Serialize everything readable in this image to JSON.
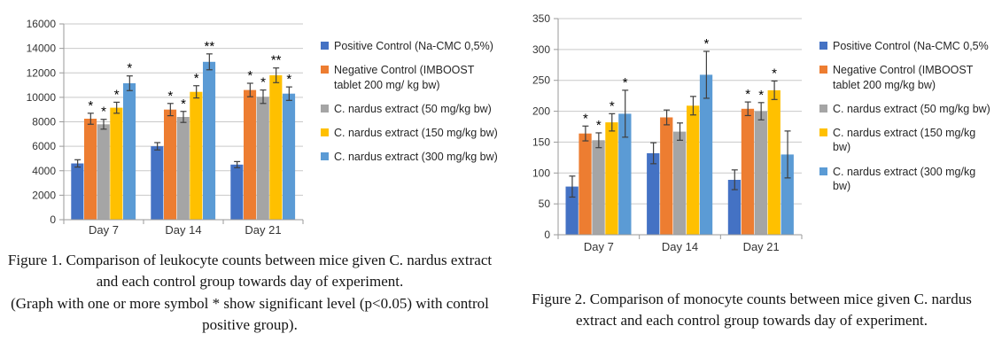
{
  "figure1": {
    "caption": "Figure 1. Comparison of leukocyte counts between mice given C. nardus extract and each control group towards day of experiment.",
    "note": "(Graph with one or more symbol * show significant level (p<0.05) with control positive group)."
  },
  "figure2": {
    "caption": "Figure 2. Comparison of monocyte counts between mice given C. nardus extract and each control group towards day of experiment."
  },
  "chart_data": [
    {
      "type": "bar",
      "figure_label": "Figure 1",
      "measure": "leukocyte counts",
      "categories": [
        "Day 7",
        "Day 14",
        "Day 21"
      ],
      "ylim": [
        0,
        16000
      ],
      "ytick_step": 2000,
      "grid": true,
      "legend_position": "right",
      "series": [
        {
          "name": "Positive Control (Na-CMC 0,5%)",
          "color": "#4472C4",
          "values": [
            4600,
            6000,
            4500
          ],
          "errors": [
            300,
            300,
            250
          ],
          "sig": [
            "",
            "",
            ""
          ]
        },
        {
          "name": "Negative Control (IMBOOST tablet 200 mg/ kg bw)",
          "color": "#ED7D31",
          "values": [
            8250,
            9000,
            10600
          ],
          "errors": [
            450,
            500,
            550
          ],
          "sig": [
            "*",
            "*",
            "*"
          ]
        },
        {
          "name": "C. nardus extract (50 mg/kg bw)",
          "color": "#A5A5A5",
          "values": [
            7800,
            8400,
            10050
          ],
          "errors": [
            400,
            450,
            550
          ],
          "sig": [
            "*",
            "*",
            "*"
          ]
        },
        {
          "name": "C. nardus extract (150 mg/kg bw)",
          "color": "#FFC000",
          "values": [
            9150,
            10450,
            11800
          ],
          "errors": [
            450,
            500,
            600
          ],
          "sig": [
            "*",
            "*",
            "**"
          ]
        },
        {
          "name": "C. nardus extract (300 mg/kg bw)",
          "color": "#5B9BD5",
          "values": [
            11150,
            12900,
            10300
          ],
          "errors": [
            600,
            650,
            550
          ],
          "sig": [
            "*",
            "**",
            "*"
          ]
        }
      ]
    },
    {
      "type": "bar",
      "figure_label": "Figure 2",
      "measure": "monocyte counts",
      "categories": [
        "Day 7",
        "Day 14",
        "Day 21"
      ],
      "ylim": [
        0,
        350
      ],
      "ytick_step": 50,
      "grid": true,
      "legend_position": "right",
      "series": [
        {
          "name": "Positive Control (Na-CMC 0,5%",
          "color": "#4472C4",
          "values": [
            78,
            132,
            89
          ],
          "errors": [
            17,
            17,
            16
          ],
          "sig": [
            "",
            "",
            ""
          ]
        },
        {
          "name": "Negative Control (IMBOOST tablet 200 mg/kg bw)",
          "color": "#ED7D31",
          "values": [
            164,
            190,
            204
          ],
          "errors": [
            12,
            12,
            11
          ],
          "sig": [
            "*",
            "",
            "*"
          ]
        },
        {
          "name": "C. nardus extract (50 mg/kg bw)",
          "color": "#A5A5A5",
          "values": [
            153,
            167,
            200
          ],
          "errors": [
            12,
            14,
            14
          ],
          "sig": [
            "*",
            "",
            "*"
          ]
        },
        {
          "name": "C. nardus extract (150 mg/kg bw)",
          "color": "#FFC000",
          "values": [
            182,
            209,
            234
          ],
          "errors": [
            14,
            15,
            15
          ],
          "sig": [
            "*",
            "",
            "*"
          ]
        },
        {
          "name": "C. nardus extract (300 mg/kg bw)",
          "color": "#5B9BD5",
          "values": [
            196,
            259,
            130
          ],
          "errors": [
            38,
            38,
            38
          ],
          "sig": [
            "*",
            "*",
            ""
          ]
        }
      ]
    }
  ]
}
